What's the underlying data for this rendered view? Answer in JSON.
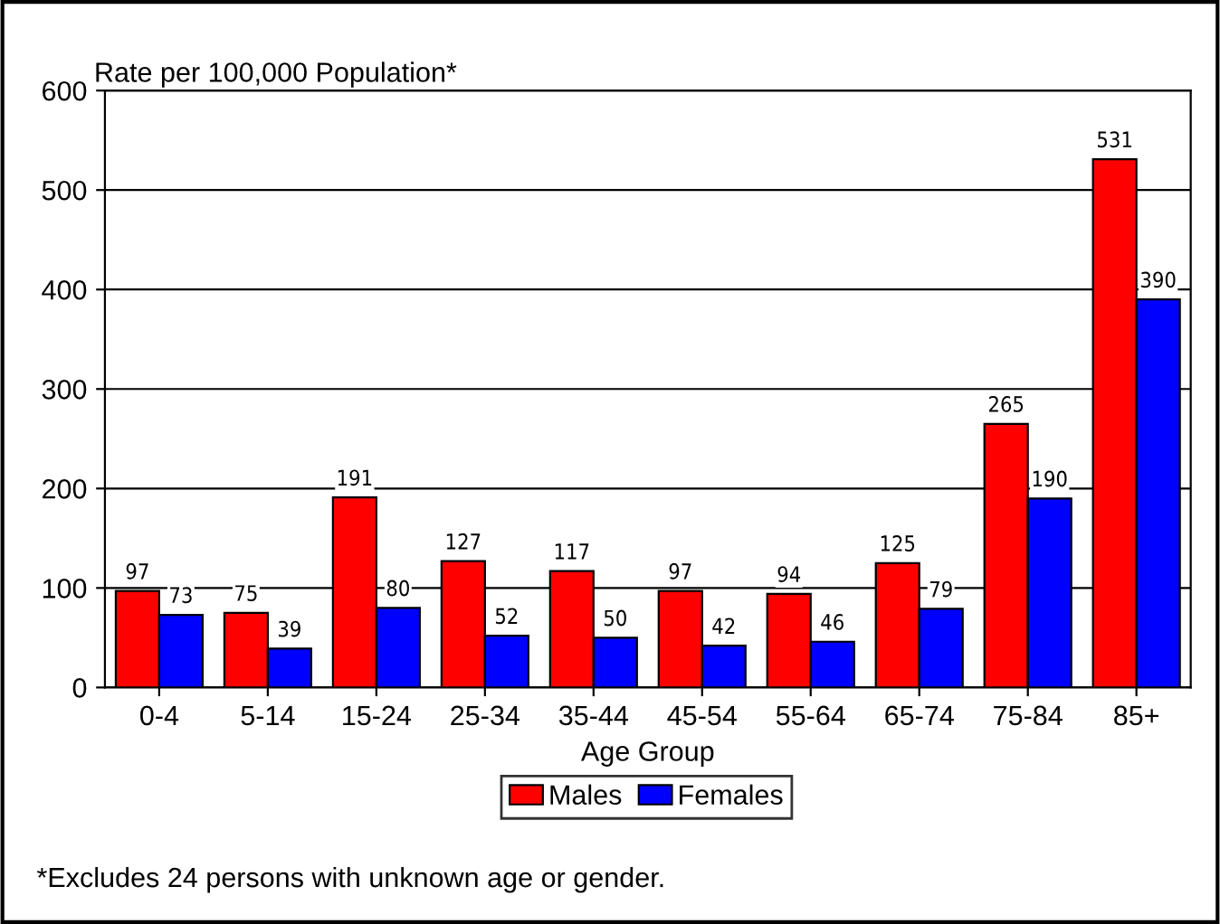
{
  "chart_data": {
    "type": "bar",
    "xlabel": "Age Group",
    "ylabel": "Rate per 100,000 Population*",
    "categories": [
      "0-4",
      "5-14",
      "15-24",
      "25-34",
      "35-44",
      "45-54",
      "55-64",
      "65-74",
      "75-84",
      "85+"
    ],
    "series": [
      {
        "name": "Males",
        "color": "#ff0000",
        "values": [
          97,
          75,
          191,
          127,
          117,
          97,
          94,
          125,
          265,
          531
        ]
      },
      {
        "name": "Females",
        "color": "#0000ff",
        "values": [
          73,
          39,
          80,
          52,
          50,
          42,
          46,
          79,
          190,
          390
        ]
      }
    ],
    "ylim": [
      0,
      600
    ],
    "yticks": [
      0,
      100,
      200,
      300,
      400,
      500,
      600
    ],
    "grid": "y",
    "legend": "bottom",
    "data_labels": true,
    "annotations": [
      "*Excludes 24 persons with unknown age or gender."
    ]
  }
}
